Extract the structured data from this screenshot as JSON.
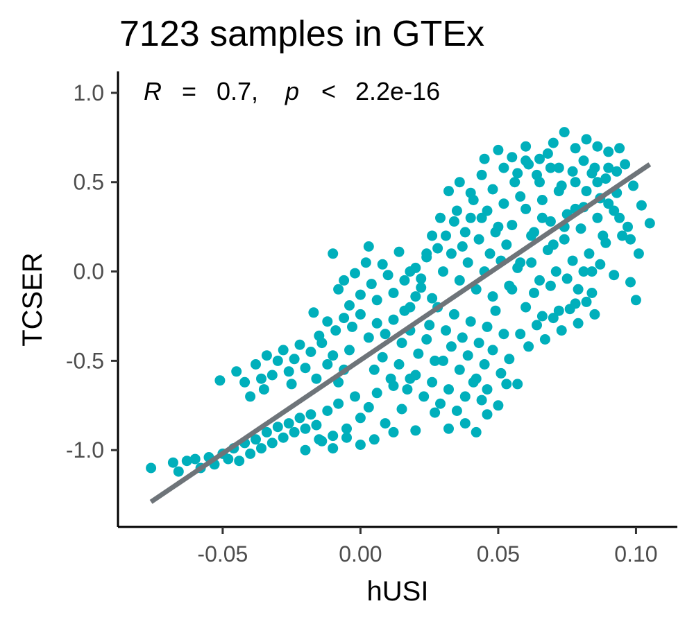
{
  "chart_data": {
    "type": "scatter",
    "title": "7123 samples in GTEx",
    "xlabel": "hUSI",
    "ylabel": "TCSER",
    "xlim": [
      -0.088,
      0.115
    ],
    "ylim": [
      -1.43,
      1.12
    ],
    "x_ticks": [
      -0.05,
      0.0,
      0.05,
      0.1
    ],
    "x_tick_labels": [
      "-0.05",
      "0.00",
      "0.05",
      "0.10"
    ],
    "y_ticks": [
      -1.0,
      -0.5,
      0.0,
      0.5,
      1.0
    ],
    "y_tick_labels": [
      "-1.0",
      "-0.5",
      "0.0",
      "0.5",
      "1.0"
    ],
    "grid": false,
    "legend": "none",
    "point_color": "#00AFBB",
    "line_color": "#6E7479",
    "annotation": {
      "r_symbol": "R",
      "r_eq": "=",
      "r_value": "0.7,",
      "p_symbol": "p",
      "p_lt": "<",
      "p_value": "2.2e-16"
    },
    "regression_line": {
      "x": [
        -0.076,
        0.105
      ],
      "y": [
        -1.29,
        0.6
      ]
    },
    "n_samples": 7123,
    "series": [
      {
        "values_note_excluded": true,
        "points": [
          [
            -0.076,
            -1.1
          ],
          [
            -0.068,
            -1.07
          ],
          [
            -0.066,
            -1.12
          ],
          [
            -0.063,
            -1.06
          ],
          [
            -0.06,
            -1.05
          ],
          [
            -0.058,
            -1.1
          ],
          [
            -0.055,
            -1.04
          ],
          [
            -0.053,
            -1.08
          ],
          [
            -0.05,
            -1.02
          ],
          [
            -0.051,
            -0.61
          ],
          [
            -0.048,
            -1.05
          ],
          [
            -0.046,
            -0.99
          ],
          [
            -0.044,
            -1.06
          ],
          [
            -0.042,
            -0.96
          ],
          [
            -0.04,
            -1.02
          ],
          [
            -0.038,
            -0.94
          ],
          [
            -0.036,
            -0.99
          ],
          [
            -0.034,
            -0.9
          ],
          [
            -0.032,
            -0.96
          ],
          [
            -0.03,
            -0.87
          ],
          [
            -0.028,
            -0.93
          ],
          [
            -0.026,
            -0.85
          ],
          [
            -0.024,
            -0.9
          ],
          [
            -0.022,
            -0.82
          ],
          [
            -0.02,
            -0.88
          ],
          [
            -0.018,
            -0.8
          ],
          [
            -0.016,
            -0.86
          ],
          [
            -0.014,
            -0.95
          ],
          [
            -0.012,
            -0.78
          ],
          [
            -0.01,
            -0.92
          ],
          [
            -0.008,
            -0.74
          ],
          [
            -0.005,
            -0.88
          ],
          [
            -0.002,
            -0.7
          ],
          [
            0.0,
            -0.82
          ],
          [
            0.003,
            -0.76
          ],
          [
            0.006,
            -0.68
          ],
          [
            0.009,
            -0.85
          ],
          [
            0.012,
            -0.64
          ],
          [
            0.015,
            -0.77
          ],
          [
            0.018,
            -0.6
          ],
          [
            -0.038,
            -0.52
          ],
          [
            -0.036,
            -0.6
          ],
          [
            -0.034,
            -0.47
          ],
          [
            -0.032,
            -0.58
          ],
          [
            -0.03,
            -0.5
          ],
          [
            -0.028,
            -0.44
          ],
          [
            -0.026,
            -0.56
          ],
          [
            -0.024,
            -0.49
          ],
          [
            -0.022,
            -0.41
          ],
          [
            -0.02,
            -0.54
          ],
          [
            -0.018,
            -0.45
          ],
          [
            -0.016,
            -0.6
          ],
          [
            -0.014,
            -0.4
          ],
          [
            -0.012,
            -0.52
          ],
          [
            -0.01,
            -0.47
          ],
          [
            -0.008,
            -0.62
          ],
          [
            -0.006,
            -0.55
          ],
          [
            -0.004,
            -0.44
          ],
          [
            -0.042,
            -0.62
          ],
          [
            -0.04,
            -0.7
          ],
          [
            -0.045,
            -0.56
          ],
          [
            -0.035,
            -0.66
          ],
          [
            -0.025,
            -0.63
          ],
          [
            -0.017,
            -0.23
          ],
          [
            -0.01,
            0.1
          ],
          [
            -0.008,
            -0.1
          ],
          [
            -0.006,
            -0.05
          ],
          [
            -0.004,
            -0.19
          ],
          [
            -0.002,
            -0.01
          ],
          [
            0.0,
            -0.13
          ],
          [
            0.002,
            0.05
          ],
          [
            0.004,
            -0.07
          ],
          [
            0.006,
            -0.16
          ],
          [
            0.008,
            0.04
          ],
          [
            0.01,
            -0.02
          ],
          [
            0.012,
            -0.12
          ],
          [
            0.014,
            0.11
          ],
          [
            0.016,
            -0.05
          ],
          [
            0.018,
            -0.2
          ],
          [
            0.02,
            0.02
          ],
          [
            0.022,
            -0.09
          ],
          [
            0.024,
            0.08
          ],
          [
            0.026,
            -0.15
          ],
          [
            0.028,
            0.13
          ],
          [
            0.003,
            0.14
          ],
          [
            -0.015,
            -0.36
          ],
          [
            -0.012,
            -0.28
          ],
          [
            -0.009,
            -0.33
          ],
          [
            -0.006,
            -0.26
          ],
          [
            -0.003,
            -0.31
          ],
          [
            0.0,
            -0.24
          ],
          [
            0.003,
            -0.37
          ],
          [
            0.006,
            -0.29
          ],
          [
            0.009,
            -0.35
          ],
          [
            0.012,
            -0.27
          ],
          [
            0.015,
            -0.4
          ],
          [
            0.018,
            -0.33
          ],
          [
            0.021,
            -0.46
          ],
          [
            0.024,
            -0.38
          ],
          [
            0.027,
            -0.5
          ],
          [
            0.005,
            -0.55
          ],
          [
            0.008,
            -0.48
          ],
          [
            0.011,
            -0.6
          ],
          [
            0.014,
            -0.52
          ],
          [
            0.017,
            -0.66
          ],
          [
            0.02,
            -0.58
          ],
          [
            0.023,
            -0.7
          ],
          [
            0.026,
            -0.62
          ],
          [
            0.029,
            -0.74
          ],
          [
            0.032,
            -0.66
          ],
          [
            0.035,
            -0.78
          ],
          [
            0.038,
            -0.7
          ],
          [
            0.041,
            -0.62
          ],
          [
            0.044,
            -0.72
          ],
          [
            0.046,
            -0.66
          ],
          [
            0.03,
            -0.5
          ],
          [
            0.033,
            -0.42
          ],
          [
            0.036,
            -0.55
          ],
          [
            0.039,
            -0.47
          ],
          [
            0.042,
            -0.6
          ],
          [
            0.045,
            -0.52
          ],
          [
            0.048,
            -0.44
          ],
          [
            0.051,
            -0.57
          ],
          [
            0.054,
            -0.49
          ],
          [
            0.057,
            -0.63
          ],
          [
            0.025,
            -0.3
          ],
          [
            0.028,
            -0.2
          ],
          [
            0.031,
            -0.33
          ],
          [
            0.034,
            -0.24
          ],
          [
            0.037,
            -0.37
          ],
          [
            0.04,
            -0.28
          ],
          [
            0.043,
            -0.4
          ],
          [
            0.046,
            -0.31
          ],
          [
            0.049,
            -0.22
          ],
          [
            0.052,
            -0.35
          ],
          [
            0.03,
            0.0
          ],
          [
            0.033,
            0.1
          ],
          [
            0.036,
            -0.05
          ],
          [
            0.039,
            0.05
          ],
          [
            0.042,
            -0.1
          ],
          [
            0.045,
            0.0
          ],
          [
            0.048,
            -0.14
          ],
          [
            0.051,
            0.06
          ],
          [
            0.054,
            -0.08
          ],
          [
            0.057,
            0.02
          ],
          [
            0.031,
            0.2
          ],
          [
            0.034,
            0.28
          ],
          [
            0.037,
            0.14
          ],
          [
            0.04,
            0.3
          ],
          [
            0.043,
            0.18
          ],
          [
            0.046,
            0.34
          ],
          [
            0.049,
            0.22
          ],
          [
            0.052,
            0.38
          ],
          [
            0.055,
            0.26
          ],
          [
            0.058,
            0.42
          ],
          [
            0.036,
            0.5
          ],
          [
            0.04,
            0.44
          ],
          [
            0.044,
            0.54
          ],
          [
            0.048,
            0.46
          ],
          [
            0.052,
            0.58
          ],
          [
            0.056,
            0.5
          ],
          [
            0.06,
            0.62
          ],
          [
            0.064,
            0.54
          ],
          [
            0.068,
            0.66
          ],
          [
            0.072,
            0.58
          ],
          [
            0.045,
            0.63
          ],
          [
            0.05,
            0.68
          ],
          [
            0.055,
            0.64
          ],
          [
            0.06,
            0.7
          ],
          [
            0.065,
            0.63
          ],
          [
            0.07,
            0.72
          ],
          [
            0.074,
            0.78
          ],
          [
            0.078,
            0.69
          ],
          [
            0.082,
            0.74
          ],
          [
            0.086,
            0.7
          ],
          [
            0.09,
            0.67
          ],
          [
            0.094,
            0.69
          ],
          [
            0.06,
            0.35
          ],
          [
            0.063,
            0.22
          ],
          [
            0.066,
            0.4
          ],
          [
            0.069,
            0.28
          ],
          [
            0.072,
            0.45
          ],
          [
            0.075,
            0.32
          ],
          [
            0.078,
            0.5
          ],
          [
            0.081,
            0.36
          ],
          [
            0.084,
            0.55
          ],
          [
            0.087,
            0.41
          ],
          [
            0.09,
            0.58
          ],
          [
            0.093,
            0.44
          ],
          [
            0.096,
            0.6
          ],
          [
            0.099,
            0.48
          ],
          [
            0.102,
            0.37
          ],
          [
            0.105,
            0.27
          ],
          [
            0.098,
            0.18
          ],
          [
            0.101,
            0.1
          ],
          [
            0.062,
            0.05
          ],
          [
            0.065,
            -0.05
          ],
          [
            0.068,
            0.12
          ],
          [
            0.071,
            0.0
          ],
          [
            0.074,
            0.18
          ],
          [
            0.077,
            0.06
          ],
          [
            0.08,
            0.24
          ],
          [
            0.083,
            0.1
          ],
          [
            0.086,
            0.3
          ],
          [
            0.089,
            0.16
          ],
          [
            0.092,
            0.34
          ],
          [
            0.095,
            0.2
          ],
          [
            0.098,
            -0.06
          ],
          [
            0.1,
            -0.16
          ],
          [
            0.092,
            -0.02
          ],
          [
            0.06,
            -0.2
          ],
          [
            0.063,
            -0.12
          ],
          [
            0.066,
            -0.25
          ],
          [
            0.069,
            -0.08
          ],
          [
            0.072,
            -0.22
          ],
          [
            0.075,
            -0.04
          ],
          [
            0.078,
            -0.18
          ],
          [
            0.081,
            0.0
          ],
          [
            0.084,
            -0.12
          ],
          [
            0.087,
            0.04
          ],
          [
            0.058,
            -0.35
          ],
          [
            0.061,
            -0.42
          ],
          [
            0.064,
            -0.3
          ],
          [
            0.067,
            -0.38
          ],
          [
            0.07,
            -0.26
          ],
          [
            0.073,
            -0.33
          ],
          [
            0.076,
            -0.21
          ],
          [
            0.079,
            -0.29
          ],
          [
            0.082,
            -0.17
          ],
          [
            0.085,
            -0.24
          ],
          [
            0.046,
            -0.8
          ],
          [
            0.05,
            -0.75
          ],
          [
            0.053,
            -0.63
          ],
          [
            0.038,
            -0.85
          ],
          [
            0.042,
            -0.9
          ],
          [
            0.032,
            -0.88
          ],
          [
            0.027,
            -0.79
          ],
          [
            0.02,
            -0.89
          ],
          [
            0.012,
            -0.9
          ],
          [
            0.005,
            -0.94
          ],
          [
            0.0,
            -0.97
          ],
          [
            -0.005,
            -0.93
          ],
          [
            -0.01,
            -0.99
          ],
          [
            -0.015,
            -0.94
          ],
          [
            -0.02,
            -1.0
          ],
          [
            0.053,
            0.15
          ],
          [
            0.05,
            0.25
          ],
          [
            0.047,
            0.1
          ],
          [
            0.044,
            0.3
          ],
          [
            0.041,
            0.4
          ],
          [
            0.038,
            0.22
          ],
          [
            0.035,
            0.34
          ],
          [
            0.032,
            0.45
          ],
          [
            0.029,
            0.3
          ],
          [
            0.026,
            0.2
          ],
          [
            0.024,
            0.1
          ],
          [
            0.022,
            -0.04
          ],
          [
            0.02,
            -0.14
          ],
          [
            0.018,
            0.0
          ],
          [
            0.016,
            -0.22
          ],
          [
            0.055,
            -0.1
          ],
          [
            0.058,
            0.05
          ],
          [
            0.062,
            0.2
          ],
          [
            0.066,
            0.3
          ],
          [
            0.07,
            0.15
          ],
          [
            0.074,
            0.25
          ],
          [
            0.078,
            0.35
          ],
          [
            0.082,
            0.45
          ],
          [
            0.086,
            0.5
          ],
          [
            0.09,
            0.38
          ],
          [
            0.094,
            0.3
          ],
          [
            0.097,
            0.25
          ],
          [
            0.088,
            0.2
          ],
          [
            0.084,
            0.0
          ],
          [
            0.079,
            -0.1
          ],
          [
            0.057,
            0.55
          ],
          [
            0.061,
            0.6
          ],
          [
            0.065,
            0.5
          ],
          [
            0.069,
            0.58
          ],
          [
            0.073,
            0.48
          ],
          [
            0.077,
            0.56
          ],
          [
            0.081,
            0.62
          ],
          [
            0.085,
            0.58
          ],
          [
            0.089,
            0.52
          ],
          [
            0.093,
            0.56
          ]
        ]
      }
    ]
  }
}
